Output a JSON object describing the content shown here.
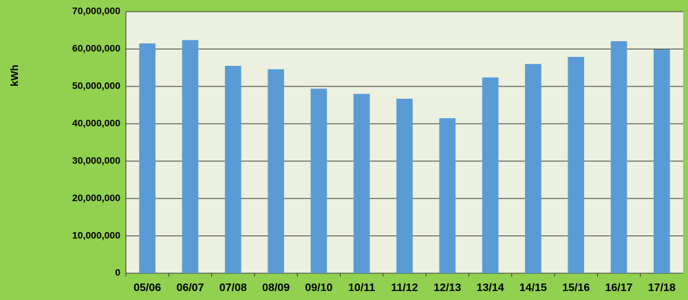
{
  "chart_data": {
    "type": "bar",
    "y_label": "kWh",
    "categories": [
      "05/06",
      "06/07",
      "07/08",
      "08/09",
      "09/10",
      "10/11",
      "11/12",
      "12/13",
      "13/14",
      "14/15",
      "15/16",
      "16/17",
      "17/18"
    ],
    "values": [
      61500000,
      62400000,
      55500000,
      54600000,
      49400000,
      48000000,
      46700000,
      41500000,
      52400000,
      56000000,
      57900000,
      62100000,
      59900000
    ],
    "color": "#5b9bd5",
    "ylim": [
      0,
      70000000
    ],
    "yticks": [
      0,
      {
        "value": 10000000,
        "label": "10,000,000"
      },
      {
        "value": 20000000,
        "label": "20,000,000"
      },
      {
        "value": 30000000,
        "label": "30,000,000"
      },
      {
        "value": 40000000,
        "label": "40,000,000"
      },
      {
        "value": 50000000,
        "label": "50,000,000"
      },
      {
        "value": 60000000,
        "label": "60,000,000"
      },
      {
        "value": 70000000,
        "label": "70,000,000"
      }
    ],
    "grid": true
  }
}
